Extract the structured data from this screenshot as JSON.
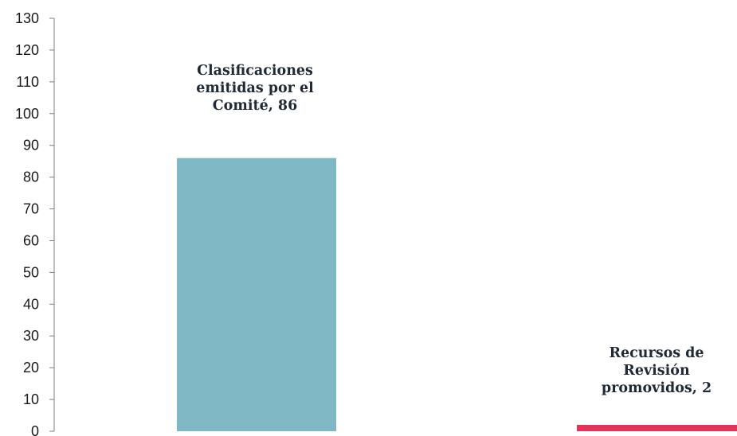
{
  "chart_data": {
    "type": "bar",
    "categories": [
      "Clasificaciones emitidas por el Comité",
      "Recursos de Revisión promovidos"
    ],
    "values": [
      86,
      2
    ],
    "colors": [
      "#7fb8c4",
      "#e0355a"
    ],
    "data_labels": [
      [
        "Clasificaciones",
        "emitidas por el",
        "Comité, 86"
      ],
      [
        "Recursos de",
        "Revisión",
        "promovidos, 2"
      ]
    ],
    "ylim": [
      0,
      130
    ],
    "yticks": [
      "0",
      "10",
      "20",
      "30",
      "40",
      "50",
      "60",
      "70",
      "80",
      "90",
      "100",
      "110",
      "120",
      "130"
    ],
    "grid": false,
    "legend": "none",
    "title": "",
    "xlabel": "",
    "ylabel": ""
  }
}
